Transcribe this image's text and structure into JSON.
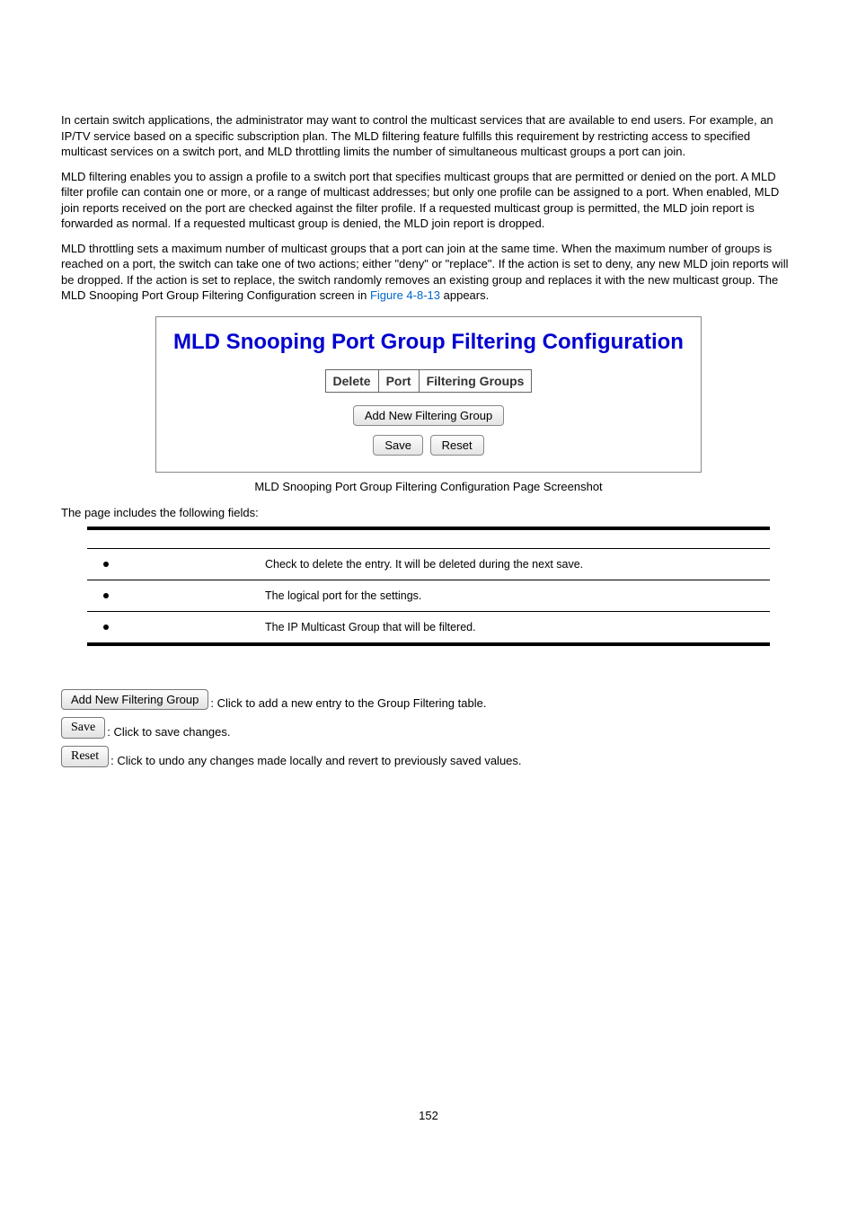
{
  "paragraphs": {
    "p1": "In certain switch applications, the administrator may want to control the multicast services that are available to end users. For example, an IP/TV service based on a specific subscription plan. The MLD filtering feature fulfills this requirement by restricting access to specified multicast services on a switch port, and MLD throttling limits the number of simultaneous multicast groups a port can join.",
    "p2": "MLD filtering enables you to assign a profile to a switch port that specifies multicast groups that are permitted or denied on the port. A MLD filter profile can contain one or more, or a range of multicast addresses; but only one profile can be assigned to a port. When enabled, MLD join reports received on the port are checked against the filter profile. If a requested multicast group is permitted, the MLD join report is forwarded as normal. If a requested multicast group is denied, the MLD join report is dropped.",
    "p3a": "MLD throttling sets a maximum number of multicast groups that a port can join at the same time. When the maximum number of groups is reached on a port, the switch can take one of two actions; either \"deny\" or \"replace\". If the action is set to deny, any new MLD join reports will be dropped. If the action is set to replace, the switch randomly removes an existing group and replaces it with the new multicast group. The MLD Snooping Port Group Filtering Configuration screen in ",
    "p3_link": "Figure 4-8-13",
    "p3b": " appears."
  },
  "screenshot": {
    "title": "MLD Snooping Port Group Filtering Configuration",
    "headers": {
      "delete": "Delete",
      "port": "Port",
      "groups": "Filtering Groups"
    },
    "buttons": {
      "add": "Add New Filtering Group",
      "save": "Save",
      "reset": "Reset"
    }
  },
  "caption": "MLD Snooping Port Group Filtering Configuration Page Screenshot",
  "fields_intro": "The page includes the following fields:",
  "field_rows": {
    "r1": "Check to delete the entry. It will be deleted during the next save.",
    "r2": "The logical port for the settings.",
    "r3": "The IP Multicast Group that will be filtered."
  },
  "button_desc": {
    "add_btn": "Add New Filtering Group",
    "add_txt": ": Click to add a new entry to the Group Filtering table.",
    "save_btn": "Save",
    "save_txt": ": Click to save changes.",
    "reset_btn": "Reset",
    "reset_txt": ": Click to undo any changes made locally and revert to previously saved values."
  },
  "page_number": "152"
}
